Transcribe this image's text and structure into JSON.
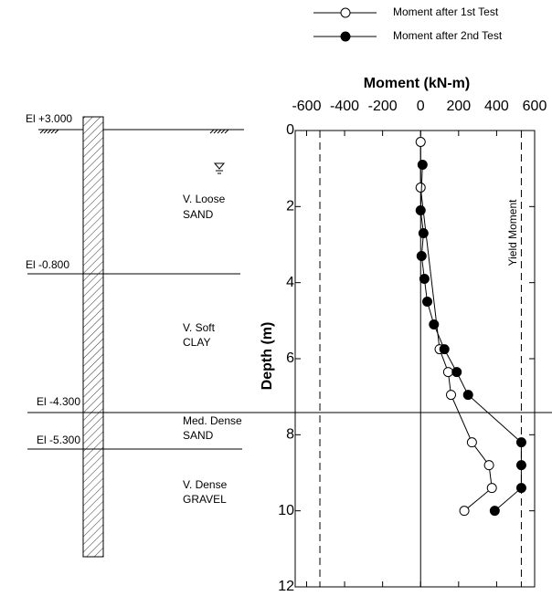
{
  "chart_data": {
    "type": "scatter",
    "title": "Moment (kN-m)",
    "y_label": "Depth (m)",
    "xlim": [
      -660,
      600
    ],
    "xticks": [
      -600,
      -400,
      -200,
      0,
      200,
      400,
      600
    ],
    "ylim": [
      0,
      12
    ],
    "yticks": [
      0,
      2,
      4,
      6,
      8,
      10,
      12
    ],
    "y_inverted": true,
    "yield_moment": [
      -530,
      530
    ],
    "yield_label": "Yield Moment",
    "series": [
      {
        "name": "Moment after 1st Test",
        "color": "#000000",
        "marker": "open",
        "x": [
          0,
          0,
          100,
          145,
          160,
          270,
          360,
          375,
          230
        ],
        "y": [
          0.3,
          1.5,
          5.75,
          6.35,
          6.95,
          8.2,
          8.8,
          9.4,
          10.0
        ]
      },
      {
        "name": "Moment after 2nd Test",
        "color": "#000000",
        "marker": "filled",
        "x": [
          10,
          0,
          15,
          5,
          20,
          35,
          70,
          125,
          190,
          250,
          530,
          530,
          530,
          390
        ],
        "y": [
          0.9,
          2.1,
          2.7,
          3.3,
          3.9,
          4.5,
          5.1,
          5.75,
          6.35,
          6.95,
          8.2,
          8.8,
          9.4,
          10.0
        ]
      }
    ]
  },
  "profile": {
    "elevations": [
      "El +3.000",
      "El -0.800",
      "El -4.300",
      "El -5.300"
    ],
    "layers": [
      [
        "V. Loose",
        "SAND"
      ],
      [
        "V. Soft",
        "CLAY"
      ],
      [
        "Med. Dense",
        "SAND"
      ],
      [
        "V. Dense",
        "GRAVEL"
      ]
    ]
  }
}
